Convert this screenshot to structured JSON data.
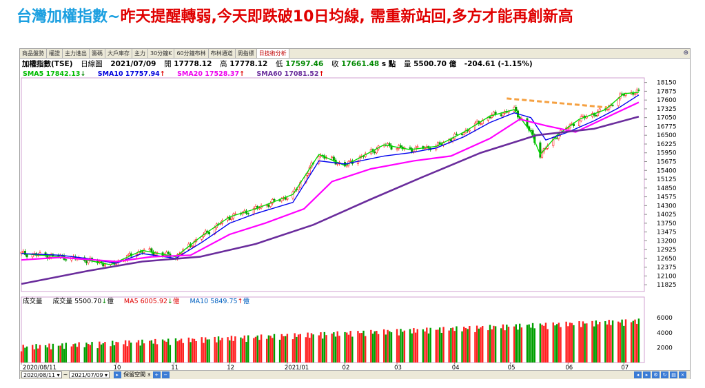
{
  "slide_title": {
    "part_a": "台灣加權指數~",
    "part_b": "昨天提醒轉弱,今天即跌破10日均線, 需重新站回,多方才能再創新高"
  },
  "tabs": [
    "商品盤勢",
    "權證",
    "主力進出",
    "籌碼",
    "大戶庫存",
    "主力",
    "30分鐘K",
    "60分鐘布林",
    "布林通道",
    "周指標",
    "日技術分析"
  ],
  "active_tab": 10,
  "info": {
    "symbol": "加權指數(TSE)",
    "period": "日線圖",
    "date": "2021/07/09",
    "open_label": "開",
    "open": "17778.12",
    "high_label": "高",
    "high": "17778.12",
    "low_label": "低",
    "low": "17597.46",
    "close_label": "收",
    "close": "17661.48",
    "unit": "s 點",
    "vol_label": "量",
    "vol": "5500.70 億",
    "change": "-204.61 (-1.15%)"
  },
  "ma_legend": {
    "sma5": "SMA5 17842.13",
    "sma5_arrow": "↓",
    "sma10": "SMA10 17757.94",
    "sma10_arrow": "↑",
    "sma20": "SMA20 17528.37",
    "sma20_arrow": "↑",
    "sma60": "SMA60 17081.52",
    "sma60_arrow": "↑"
  },
  "vol_legend": {
    "title": "成交量",
    "vol": "成交量 5500.70",
    "vol_arrow": "↓",
    "vol_unit": "億",
    "ma5": "MA5 6005.92",
    "ma5_arrow": "↓",
    "ma5_unit": "億",
    "ma10": "MA10 5849.75",
    "ma10_arrow": "↑",
    "ma10_unit": "億"
  },
  "bottom": {
    "start_date": "2020/08/11",
    "sep": "~",
    "end_date": "2021/07/09",
    "keep_space": "保留空間",
    "keep_space_value": "3"
  },
  "colors": {
    "sma5": "#00dd00",
    "sma10": "#0000ee",
    "sma20": "#ff00ff",
    "sma60": "#6a2c9c",
    "up": "#ff2020",
    "down": "#00a000",
    "resistance": "#f5a040"
  },
  "chart_data": {
    "type": "line",
    "title": "",
    "xlabel": "",
    "ylabel": "",
    "price_ylim": [
      11700,
      18250
    ],
    "price_ticks": [
      18150,
      17875,
      17600,
      17325,
      17050,
      16775,
      16500,
      16225,
      15950,
      15675,
      15400,
      15125,
      14850,
      14575,
      14300,
      14025,
      13750,
      13475,
      13200,
      12925,
      12650,
      12375,
      12100,
      11825
    ],
    "volume_ylim": [
      0,
      7500
    ],
    "volume_ticks": [
      6000,
      4000,
      2000
    ],
    "x_tick_labels": [
      "2020/08/11",
      "10",
      "11",
      "12",
      "2021/01",
      "02",
      "03",
      "04",
      "05",
      "06",
      "07"
    ],
    "x_tick_dates": [
      "2020-08-11",
      "2020-10-01",
      "2020-11-01",
      "2020-12-01",
      "2021-01-01",
      "2021-02-01",
      "2021-03-01",
      "2021-04-01",
      "2021-05-01",
      "2021-06-01",
      "2021-07-01"
    ],
    "resistance_line": {
      "x": [
        "2021-04-29",
        "2021-06-22"
      ],
      "y": [
        17650,
        17370
      ]
    },
    "series": [
      {
        "name": "SMA5",
        "x": [
          "2020-08-11",
          "2020-09-01",
          "2020-09-15",
          "2020-09-28",
          "2020-10-15",
          "2020-11-02",
          "2020-11-16",
          "2020-12-01",
          "2020-12-15",
          "2021-01-04",
          "2021-01-18",
          "2021-02-01",
          "2021-02-22",
          "2021-03-08",
          "2021-03-22",
          "2021-04-06",
          "2021-04-20",
          "2021-05-03",
          "2021-05-12",
          "2021-05-17",
          "2021-05-26",
          "2021-06-07",
          "2021-06-21",
          "2021-07-01",
          "2021-07-09"
        ],
        "y": [
          12800,
          12700,
          12600,
          12450,
          12900,
          12700,
          13350,
          13950,
          14200,
          14650,
          15900,
          15550,
          16200,
          16050,
          16150,
          16600,
          17100,
          17300,
          16600,
          15900,
          16500,
          17000,
          17300,
          17800,
          17842
        ]
      },
      {
        "name": "SMA10",
        "x": [
          "2020-08-11",
          "2020-09-01",
          "2020-09-15",
          "2020-10-01",
          "2020-10-15",
          "2020-11-02",
          "2020-11-16",
          "2020-12-01",
          "2020-12-15",
          "2021-01-04",
          "2021-01-18",
          "2021-02-01",
          "2021-02-22",
          "2021-03-08",
          "2021-03-22",
          "2021-04-06",
          "2021-04-20",
          "2021-05-03",
          "2021-05-12",
          "2021-05-20",
          "2021-06-01",
          "2021-06-15",
          "2021-06-28",
          "2021-07-09"
        ],
        "y": [
          12800,
          12750,
          12650,
          12500,
          12800,
          12650,
          13150,
          13750,
          14050,
          14400,
          15700,
          15600,
          15850,
          15950,
          16100,
          16450,
          16900,
          17200,
          17050,
          16350,
          16600,
          16950,
          17350,
          17758
        ]
      },
      {
        "name": "SMA20",
        "x": [
          "2020-08-11",
          "2020-09-01",
          "2020-10-01",
          "2020-10-20",
          "2020-11-10",
          "2020-12-01",
          "2020-12-20",
          "2021-01-10",
          "2021-01-25",
          "2021-02-15",
          "2021-03-10",
          "2021-03-30",
          "2021-04-20",
          "2021-05-06",
          "2021-05-20",
          "2021-06-05",
          "2021-06-25",
          "2021-07-09"
        ],
        "y": [
          12600,
          12680,
          12550,
          12700,
          12750,
          13400,
          13750,
          14200,
          15050,
          15450,
          15700,
          15850,
          16400,
          17000,
          16800,
          16600,
          17150,
          17528
        ]
      },
      {
        "name": "SMA60",
        "x": [
          "2020-08-11",
          "2020-09-15",
          "2020-10-15",
          "2020-11-15",
          "2020-12-15",
          "2021-01-15",
          "2021-02-15",
          "2021-03-15",
          "2021-04-15",
          "2021-05-15",
          "2021-06-15",
          "2021-07-09"
        ],
        "y": [
          11850,
          12250,
          12550,
          12700,
          13100,
          13700,
          14500,
          15200,
          15950,
          16500,
          16700,
          17082
        ]
      }
    ]
  }
}
